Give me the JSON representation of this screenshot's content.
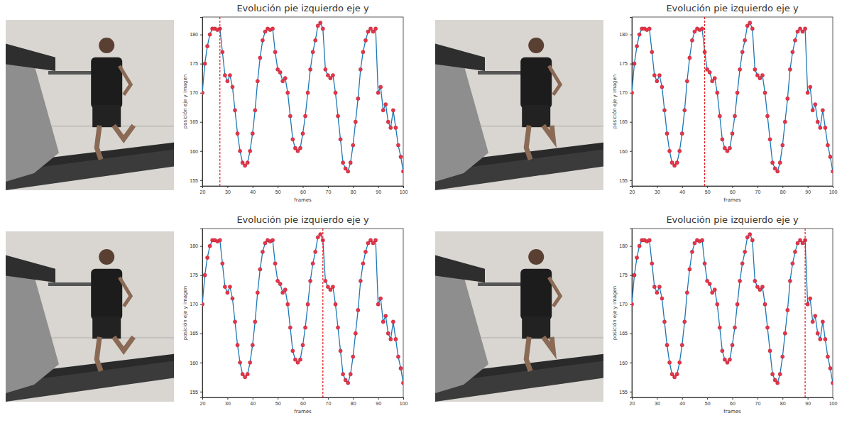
{
  "chart_data": [
    {
      "type": "line",
      "title": "Evolución pie izquierdo eje y",
      "x_label": "frames",
      "y_label": "posición eje y imagen",
      "x": [
        20,
        21,
        22,
        23,
        24,
        25,
        26,
        27,
        28,
        29,
        30,
        31,
        32,
        33,
        34,
        35,
        36,
        37,
        38,
        39,
        40,
        41,
        42,
        43,
        44,
        45,
        46,
        47,
        48,
        49,
        50,
        51,
        52,
        53,
        54,
        55,
        56,
        57,
        58,
        59,
        60,
        61,
        62,
        63,
        64,
        65,
        66,
        67,
        68,
        69,
        70,
        71,
        72,
        73,
        74,
        75,
        76,
        77,
        78,
        79,
        80,
        81,
        82,
        83,
        84,
        85,
        86,
        87,
        88,
        89,
        90,
        91,
        92,
        93,
        94,
        95,
        96,
        97,
        98,
        99,
        100
      ],
      "values": [
        170,
        175,
        178,
        180,
        181,
        181,
        180.8,
        181,
        177,
        173,
        172,
        173,
        171,
        167,
        163,
        160,
        158,
        157.5,
        158,
        160,
        163,
        167,
        172,
        176,
        179,
        180.5,
        181,
        180.8,
        181,
        177,
        174,
        173.5,
        172,
        172.5,
        170,
        166,
        162,
        160.5,
        160,
        160.5,
        163,
        166,
        170,
        174,
        177,
        179,
        181.5,
        182,
        181,
        174,
        173,
        172.5,
        173,
        170,
        166,
        162,
        158,
        157,
        156.5,
        158,
        161,
        165,
        169,
        174,
        177,
        179,
        180.5,
        181,
        180.5,
        181,
        170,
        171,
        167,
        168,
        165,
        164,
        167,
        164,
        161,
        159,
        156.5
      ],
      "color": "#1f77b4",
      "marker": "circle",
      "xlim": [
        20,
        100
      ],
      "xticks": [
        20,
        30,
        40,
        50,
        60,
        70,
        80,
        90,
        100
      ],
      "ylim": [
        154,
        183
      ],
      "yticks": [
        155,
        160,
        165,
        170,
        175,
        180
      ],
      "current_frame": 27
    },
    {
      "type": "line",
      "title": "Evolución pie izquierdo eje y",
      "x_label": "frames",
      "y_label": "posición eje y imagen",
      "x": [
        20,
        21,
        22,
        23,
        24,
        25,
        26,
        27,
        28,
        29,
        30,
        31,
        32,
        33,
        34,
        35,
        36,
        37,
        38,
        39,
        40,
        41,
        42,
        43,
        44,
        45,
        46,
        47,
        48,
        49,
        50,
        51,
        52,
        53,
        54,
        55,
        56,
        57,
        58,
        59,
        60,
        61,
        62,
        63,
        64,
        65,
        66,
        67,
        68,
        69,
        70,
        71,
        72,
        73,
        74,
        75,
        76,
        77,
        78,
        79,
        80,
        81,
        82,
        83,
        84,
        85,
        86,
        87,
        88,
        89,
        90,
        91,
        92,
        93,
        94,
        95,
        96,
        97,
        98,
        99,
        100
      ],
      "values": [
        170,
        175,
        178,
        180,
        181,
        181,
        180.8,
        181,
        177,
        173,
        172,
        173,
        171,
        167,
        163,
        160,
        158,
        157.5,
        158,
        160,
        163,
        167,
        172,
        176,
        179,
        180.5,
        181,
        180.8,
        181,
        177,
        174,
        173.5,
        172,
        172.5,
        170,
        166,
        162,
        160.5,
        160,
        160.5,
        163,
        166,
        170,
        174,
        177,
        179,
        181.5,
        182,
        181,
        174,
        173,
        172.5,
        173,
        170,
        166,
        162,
        158,
        157,
        156.5,
        158,
        161,
        165,
        169,
        174,
        177,
        179,
        180.5,
        181,
        180.5,
        181,
        170,
        171,
        167,
        168,
        165,
        164,
        167,
        164,
        161,
        159,
        156.5
      ],
      "color": "#1f77b4",
      "marker": "circle",
      "xlim": [
        20,
        100
      ],
      "xticks": [
        20,
        30,
        40,
        50,
        60,
        70,
        80,
        90,
        100
      ],
      "ylim": [
        154,
        183
      ],
      "yticks": [
        155,
        160,
        165,
        170,
        175,
        180
      ],
      "current_frame": 49
    },
    {
      "type": "line",
      "title": "Evolución pie izquierdo eje y",
      "x_label": "frames",
      "y_label": "posición eje y imagen",
      "x": [
        20,
        21,
        22,
        23,
        24,
        25,
        26,
        27,
        28,
        29,
        30,
        31,
        32,
        33,
        34,
        35,
        36,
        37,
        38,
        39,
        40,
        41,
        42,
        43,
        44,
        45,
        46,
        47,
        48,
        49,
        50,
        51,
        52,
        53,
        54,
        55,
        56,
        57,
        58,
        59,
        60,
        61,
        62,
        63,
        64,
        65,
        66,
        67,
        68,
        69,
        70,
        71,
        72,
        73,
        74,
        75,
        76,
        77,
        78,
        79,
        80,
        81,
        82,
        83,
        84,
        85,
        86,
        87,
        88,
        89,
        90,
        91,
        92,
        93,
        94,
        95,
        96,
        97,
        98,
        99,
        100
      ],
      "values": [
        170,
        175,
        178,
        180,
        181,
        181,
        180.8,
        181,
        177,
        173,
        172,
        173,
        171,
        167,
        163,
        160,
        158,
        157.5,
        158,
        160,
        163,
        167,
        172,
        176,
        179,
        180.5,
        181,
        180.8,
        181,
        177,
        174,
        173.5,
        172,
        172.5,
        170,
        166,
        162,
        160.5,
        160,
        160.5,
        163,
        166,
        170,
        174,
        177,
        179,
        181.5,
        182,
        181,
        174,
        173,
        172.5,
        173,
        170,
        166,
        162,
        158,
        157,
        156.5,
        158,
        161,
        165,
        169,
        174,
        177,
        179,
        180.5,
        181,
        180.5,
        181,
        170,
        171,
        167,
        168,
        165,
        164,
        167,
        164,
        161,
        159,
        156.5
      ],
      "color": "#1f77b4",
      "marker": "circle",
      "xlim": [
        20,
        100
      ],
      "xticks": [
        20,
        30,
        40,
        50,
        60,
        70,
        80,
        90,
        100
      ],
      "ylim": [
        154,
        183
      ],
      "yticks": [
        155,
        160,
        165,
        170,
        175,
        180
      ],
      "current_frame": 68
    },
    {
      "type": "line",
      "title": "Evolución pie izquierdo eje y",
      "x_label": "frames",
      "y_label": "posición eje y imagen",
      "x": [
        20,
        21,
        22,
        23,
        24,
        25,
        26,
        27,
        28,
        29,
        30,
        31,
        32,
        33,
        34,
        35,
        36,
        37,
        38,
        39,
        40,
        41,
        42,
        43,
        44,
        45,
        46,
        47,
        48,
        49,
        50,
        51,
        52,
        53,
        54,
        55,
        56,
        57,
        58,
        59,
        60,
        61,
        62,
        63,
        64,
        65,
        66,
        67,
        68,
        69,
        70,
        71,
        72,
        73,
        74,
        75,
        76,
        77,
        78,
        79,
        80,
        81,
        82,
        83,
        84,
        85,
        86,
        87,
        88,
        89,
        90,
        91,
        92,
        93,
        94,
        95,
        96,
        97,
        98,
        99,
        100
      ],
      "values": [
        170,
        175,
        178,
        180,
        181,
        181,
        180.8,
        181,
        177,
        173,
        172,
        173,
        171,
        167,
        163,
        160,
        158,
        157.5,
        158,
        160,
        163,
        167,
        172,
        176,
        179,
        180.5,
        181,
        180.8,
        181,
        177,
        174,
        173.5,
        172,
        172.5,
        170,
        166,
        162,
        160.5,
        160,
        160.5,
        163,
        166,
        170,
        174,
        177,
        179,
        181.5,
        182,
        181,
        174,
        173,
        172.5,
        173,
        170,
        166,
        162,
        158,
        157,
        156.5,
        158,
        161,
        165,
        169,
        174,
        177,
        179,
        180.5,
        181,
        180.5,
        181,
        170,
        171,
        167,
        168,
        165,
        164,
        167,
        164,
        161,
        159,
        156.5
      ],
      "color": "#1f77b4",
      "marker": "circle",
      "xlim": [
        20,
        100
      ],
      "xticks": [
        20,
        30,
        40,
        50,
        60,
        70,
        80,
        90,
        100
      ],
      "ylim": [
        154,
        183
      ],
      "yticks": [
        155,
        160,
        165,
        170,
        175,
        180
      ],
      "current_frame": 89
    }
  ]
}
